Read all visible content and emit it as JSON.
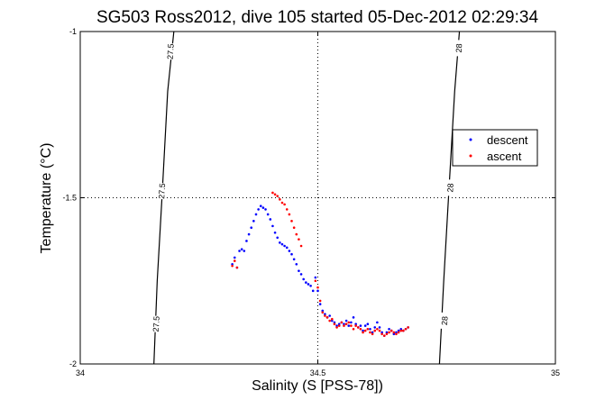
{
  "chart_data": {
    "type": "scatter",
    "title": "SG503 Ross2012, dive 105 started 05-Dec-2012 02:29:34",
    "xlabel": "Salinity (S [PSS-78])",
    "ylabel": "Temperature (°C)",
    "xlim": [
      34,
      35
    ],
    "ylim": [
      -2,
      -1
    ],
    "xticks": [
      34,
      34.5,
      35
    ],
    "yticks": [
      -2,
      -1.5,
      -1
    ],
    "xtick_labels": [
      "34",
      "34.5",
      "35"
    ],
    "ytick_labels": [
      "-2",
      "-1.5",
      "-1"
    ],
    "grid": "dotted at 34.5 and -1.5",
    "legend": {
      "position": "right",
      "entries": [
        {
          "name": "descent",
          "color": "#0000ff"
        },
        {
          "name": "ascent",
          "color": "#ff0000"
        }
      ]
    },
    "contours": [
      {
        "label": "27.5",
        "points": [
          [
            34.197,
            -1.0
          ],
          [
            34.184,
            -1.18
          ],
          [
            34.172,
            -1.5
          ],
          [
            34.162,
            -1.75
          ],
          [
            34.155,
            -2.0
          ]
        ],
        "label_positions": [
          [
            34.19,
            -1.06
          ],
          [
            34.172,
            -1.48
          ],
          [
            34.16,
            -1.88
          ]
        ]
      },
      {
        "label": "28",
        "points": [
          [
            34.798,
            -1.0
          ],
          [
            34.788,
            -1.18
          ],
          [
            34.775,
            -1.5
          ],
          [
            34.765,
            -1.75
          ],
          [
            34.756,
            -2.0
          ]
        ],
        "label_positions": [
          [
            34.797,
            -1.05
          ],
          [
            34.779,
            -1.47
          ],
          [
            34.767,
            -1.87
          ]
        ]
      }
    ],
    "series": [
      {
        "name": "descent",
        "color": "#0000ff",
        "points": [
          [
            34.32,
            -1.7
          ],
          [
            34.325,
            -1.68
          ],
          [
            34.33,
            -1.71
          ],
          [
            34.335,
            -1.66
          ],
          [
            34.34,
            -1.655
          ],
          [
            34.345,
            -1.66
          ],
          [
            34.35,
            -1.63
          ],
          [
            34.355,
            -1.61
          ],
          [
            34.36,
            -1.59
          ],
          [
            34.365,
            -1.57
          ],
          [
            34.37,
            -1.55
          ],
          [
            34.375,
            -1.535
          ],
          [
            34.38,
            -1.525
          ],
          [
            34.385,
            -1.53
          ],
          [
            34.39,
            -1.535
          ],
          [
            34.395,
            -1.55
          ],
          [
            34.4,
            -1.565
          ],
          [
            34.405,
            -1.585
          ],
          [
            34.41,
            -1.605
          ],
          [
            34.415,
            -1.62
          ],
          [
            34.42,
            -1.635
          ],
          [
            34.425,
            -1.64
          ],
          [
            34.43,
            -1.645
          ],
          [
            34.435,
            -1.65
          ],
          [
            34.44,
            -1.66
          ],
          [
            34.445,
            -1.67
          ],
          [
            34.45,
            -1.685
          ],
          [
            34.455,
            -1.7
          ],
          [
            34.46,
            -1.72
          ],
          [
            34.465,
            -1.73
          ],
          [
            34.47,
            -1.745
          ],
          [
            34.475,
            -1.755
          ],
          [
            34.48,
            -1.76
          ],
          [
            34.485,
            -1.765
          ],
          [
            34.49,
            -1.78
          ],
          [
            34.495,
            -1.74
          ],
          [
            34.5,
            -1.78
          ],
          [
            34.505,
            -1.82
          ],
          [
            34.51,
            -1.84
          ],
          [
            34.515,
            -1.85
          ],
          [
            34.52,
            -1.86
          ],
          [
            34.525,
            -1.855
          ],
          [
            34.53,
            -1.87
          ],
          [
            34.535,
            -1.875
          ],
          [
            34.54,
            -1.885
          ],
          [
            34.545,
            -1.88
          ],
          [
            34.55,
            -1.875
          ],
          [
            34.555,
            -1.88
          ],
          [
            34.56,
            -1.87
          ],
          [
            34.565,
            -1.885
          ],
          [
            34.57,
            -1.875
          ],
          [
            34.575,
            -1.86
          ],
          [
            34.58,
            -1.88
          ],
          [
            34.585,
            -1.89
          ],
          [
            34.59,
            -1.885
          ],
          [
            34.595,
            -1.9
          ],
          [
            34.6,
            -1.885
          ],
          [
            34.605,
            -1.88
          ],
          [
            34.61,
            -1.895
          ],
          [
            34.615,
            -1.905
          ],
          [
            34.62,
            -1.89
          ],
          [
            34.625,
            -1.875
          ],
          [
            34.63,
            -1.89
          ],
          [
            34.635,
            -1.905
          ],
          [
            34.64,
            -1.915
          ],
          [
            34.645,
            -1.905
          ],
          [
            34.65,
            -1.895
          ],
          [
            34.655,
            -1.9
          ],
          [
            34.66,
            -1.91
          ],
          [
            34.665,
            -1.905
          ],
          [
            34.67,
            -1.9
          ],
          [
            34.675,
            -1.895
          ],
          [
            34.68,
            -1.9
          ],
          [
            34.685,
            -1.895
          ],
          [
            34.69,
            -1.89
          ]
        ]
      },
      {
        "name": "ascent",
        "color": "#ff0000",
        "points": [
          [
            34.32,
            -1.705
          ],
          [
            34.325,
            -1.69
          ],
          [
            34.33,
            -1.71
          ],
          [
            34.405,
            -1.485
          ],
          [
            34.41,
            -1.49
          ],
          [
            34.415,
            -1.495
          ],
          [
            34.42,
            -1.505
          ],
          [
            34.425,
            -1.515
          ],
          [
            34.43,
            -1.52
          ],
          [
            34.435,
            -1.535
          ],
          [
            34.44,
            -1.55
          ],
          [
            34.445,
            -1.57
          ],
          [
            34.45,
            -1.59
          ],
          [
            34.455,
            -1.61
          ],
          [
            34.46,
            -1.625
          ],
          [
            34.465,
            -1.645
          ],
          [
            34.495,
            -1.75
          ],
          [
            34.5,
            -1.77
          ],
          [
            34.505,
            -1.81
          ],
          [
            34.51,
            -1.845
          ],
          [
            34.515,
            -1.855
          ],
          [
            34.52,
            -1.86
          ],
          [
            34.525,
            -1.87
          ],
          [
            34.53,
            -1.865
          ],
          [
            34.535,
            -1.88
          ],
          [
            34.54,
            -1.89
          ],
          [
            34.545,
            -1.885
          ],
          [
            34.55,
            -1.875
          ],
          [
            34.555,
            -1.885
          ],
          [
            34.56,
            -1.88
          ],
          [
            34.565,
            -1.875
          ],
          [
            34.57,
            -1.885
          ],
          [
            34.575,
            -1.895
          ],
          [
            34.58,
            -1.885
          ],
          [
            34.585,
            -1.89
          ],
          [
            34.59,
            -1.895
          ],
          [
            34.595,
            -1.905
          ],
          [
            34.6,
            -1.9
          ],
          [
            34.605,
            -1.895
          ],
          [
            34.61,
            -1.905
          ],
          [
            34.615,
            -1.91
          ],
          [
            34.62,
            -1.9
          ],
          [
            34.625,
            -1.895
          ],
          [
            34.63,
            -1.9
          ],
          [
            34.635,
            -1.91
          ],
          [
            34.64,
            -1.915
          ],
          [
            34.645,
            -1.91
          ],
          [
            34.65,
            -1.905
          ],
          [
            34.655,
            -1.9
          ],
          [
            34.66,
            -1.905
          ],
          [
            34.665,
            -1.91
          ],
          [
            34.67,
            -1.905
          ],
          [
            34.675,
            -1.9
          ],
          [
            34.68,
            -1.9
          ],
          [
            34.685,
            -1.895
          ],
          [
            34.69,
            -1.89
          ]
        ]
      }
    ]
  }
}
